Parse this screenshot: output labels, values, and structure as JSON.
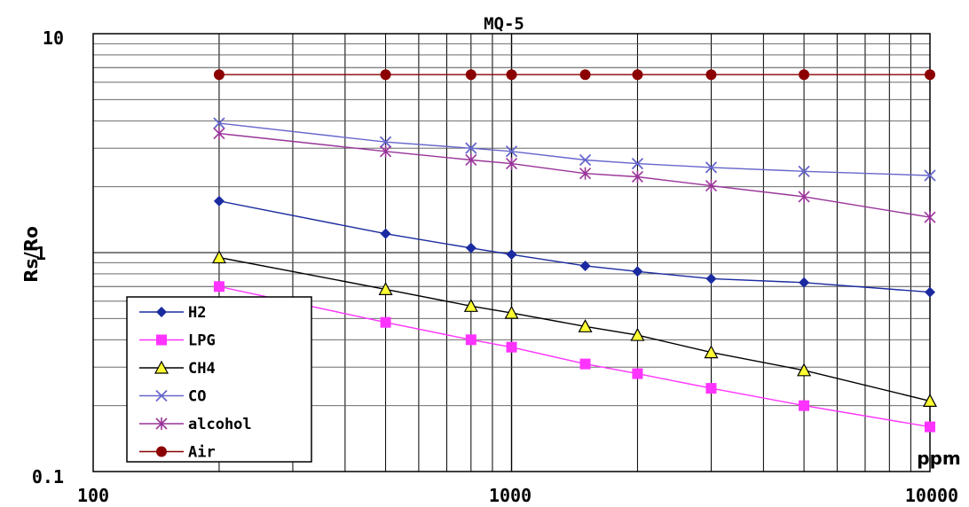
{
  "chart_data": {
    "type": "line",
    "title": "MQ-5",
    "xlabel": "ppm",
    "ylabel": "Rs/Ro",
    "x_scale": "log",
    "y_scale": "log",
    "xlim": [
      100,
      10000
    ],
    "ylim": [
      0.1,
      10
    ],
    "x_ticks": [
      "100",
      "1000",
      "10000"
    ],
    "y_ticks": [
      "10",
      "1",
      "0.1"
    ],
    "grid": true,
    "legend_position": "bottom-left",
    "x": [
      200,
      500,
      800,
      1000,
      1500,
      2000,
      3000,
      5000,
      10000
    ],
    "series": [
      {
        "name": "H2",
        "color": "#1a2aa0",
        "marker": "diamond",
        "values": [
          1.72,
          1.22,
          1.05,
          0.98,
          0.87,
          0.82,
          0.76,
          0.73,
          0.66
        ]
      },
      {
        "name": "LPG",
        "color": "#ff33ff",
        "marker": "square",
        "values": [
          0.7,
          0.48,
          0.4,
          0.37,
          0.31,
          0.28,
          0.24,
          0.2,
          0.16
        ]
      },
      {
        "name": "CH4",
        "color": "#000000",
        "marker": "triangle",
        "values": [
          0.95,
          0.68,
          0.57,
          0.53,
          0.46,
          0.42,
          0.35,
          0.29,
          0.21
        ]
      },
      {
        "name": "CO",
        "color": "#6666cc",
        "marker": "x",
        "values": [
          3.9,
          3.2,
          3.0,
          2.9,
          2.65,
          2.55,
          2.45,
          2.35,
          2.25
        ]
      },
      {
        "name": "alcohol",
        "color": "#993399",
        "marker": "asterisk",
        "values": [
          3.5,
          2.9,
          2.65,
          2.55,
          2.3,
          2.22,
          2.02,
          1.8,
          1.45
        ]
      },
      {
        "name": "Air",
        "color": "#8b0000",
        "marker": "circle",
        "values": [
          6.5,
          6.5,
          6.5,
          6.5,
          6.5,
          6.5,
          6.5,
          6.5,
          6.5
        ]
      }
    ]
  }
}
